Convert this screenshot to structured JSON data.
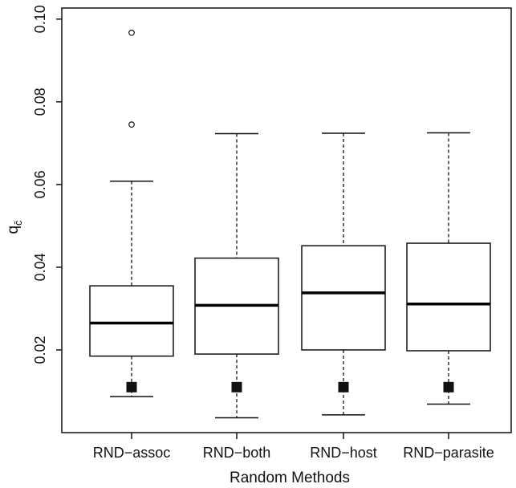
{
  "chart_data": {
    "type": "box",
    "xlabel": "Random Methods",
    "ylabel_main": "q",
    "ylabel_sub": "c̄",
    "ylim": [
      0.0,
      0.1
    ],
    "yticks": [
      "0.02",
      "0.04",
      "0.06",
      "0.08",
      "0.10"
    ],
    "ytick_values": [
      0.02,
      0.04,
      0.06,
      0.08,
      0.1
    ],
    "categories": [
      "RND−assoc",
      "RND−both",
      "RND−host",
      "RND−parasite"
    ],
    "boxes": [
      {
        "whisker_low": 0.0087,
        "q1": 0.0185,
        "median": 0.0265,
        "q3": 0.0355,
        "whisker_high": 0.0608,
        "outliers": [
          0.0745,
          0.0967
        ],
        "marker": 0.011
      },
      {
        "whisker_low": 0.0036,
        "q1": 0.019,
        "median": 0.0308,
        "q3": 0.0422,
        "whisker_high": 0.0723,
        "outliers": [],
        "marker": 0.011
      },
      {
        "whisker_low": 0.0043,
        "q1": 0.02,
        "median": 0.0338,
        "q3": 0.0452,
        "whisker_high": 0.0724,
        "outliers": [],
        "marker": 0.011
      },
      {
        "whisker_low": 0.0069,
        "q1": 0.0198,
        "median": 0.0311,
        "q3": 0.0458,
        "whisker_high": 0.0725,
        "outliers": [],
        "marker": 0.011
      }
    ]
  }
}
